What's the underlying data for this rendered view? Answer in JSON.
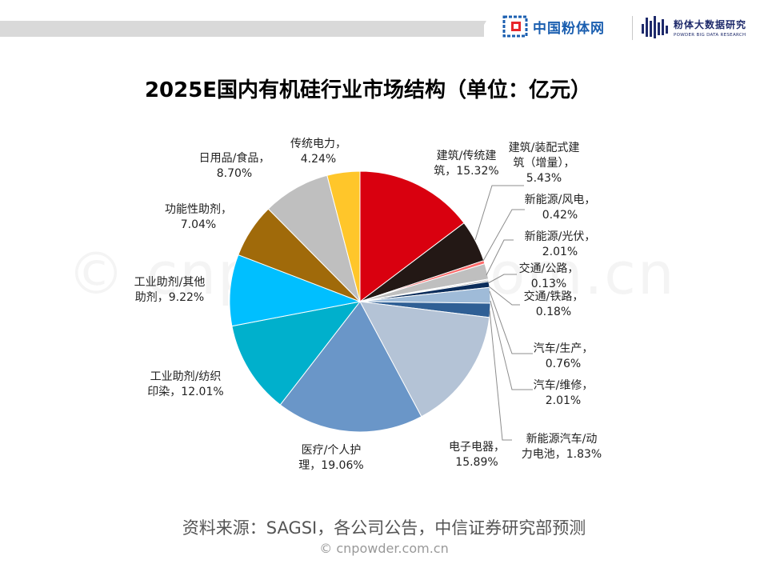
{
  "header": {
    "logo1_text": "中国粉体网",
    "logo2_cn": "粉体大数据研究",
    "logo2_en": "POWDER BIG DATA RESEARCH"
  },
  "watermark": "© cnpowder.com.cn",
  "source": "资料来源：SAGSI，各公司公告，中信证券研究部预测",
  "footer": "© cnpowder.com.cn",
  "colors": {
    "topbar": "#d9d9d9",
    "brand_blue": "#1b5fb0",
    "brand_red": "#e8262b",
    "leader_line": "#8c8c8c"
  },
  "chart_data": {
    "type": "pie",
    "title": "2025E国内有机硅行业市场结构（单位：亿元）",
    "unit": "%",
    "start_angle_deg": 90,
    "direction": "clockwise",
    "slices": [
      {
        "label_lines": [
          "建筑/传统建",
          "筑，15.32%"
        ],
        "value": 15.32,
        "color": "#d9000f"
      },
      {
        "label_lines": [
          "建筑/装配式建",
          "筑（增量），",
          "5.43%"
        ],
        "value": 5.43,
        "color": "#231815"
      },
      {
        "label_lines": [
          "新能源/风电，",
          "0.42%"
        ],
        "value": 0.42,
        "color": "#ff6b6b"
      },
      {
        "label_lines": [
          "新能源/光伏，",
          "2.01%"
        ],
        "value": 2.01,
        "color": "#bfbfbf"
      },
      {
        "label_lines": [
          "交通/公路，",
          "0.13%"
        ],
        "value": 0.13,
        "color": "#d0d0d0"
      },
      {
        "label_lines": [
          "交通/铁路，",
          "0.18%"
        ],
        "value": 0.18,
        "color": "#7f7f7f"
      },
      {
        "label_lines": [
          "汽车/生产，",
          "0.76%"
        ],
        "value": 0.76,
        "color": "#0b2d5b"
      },
      {
        "label_lines": [
          "汽车/维修，",
          "2.01%"
        ],
        "value": 2.01,
        "color": "#9fbbd8"
      },
      {
        "label_lines": [
          "新能源汽车/动",
          "力电池，1.83%"
        ],
        "value": 1.83,
        "color": "#2f5f95"
      },
      {
        "label_lines": [
          "电子电器，",
          "15.89%"
        ],
        "value": 15.89,
        "color": "#b4c3d6"
      },
      {
        "label_lines": [
          "医疗/个人护",
          "理，19.06%"
        ],
        "value": 19.06,
        "color": "#6a96c8"
      },
      {
        "label_lines": [
          "工业助剂/纺织",
          "印染，12.01%"
        ],
        "value": 12.01,
        "color": "#00b0cc"
      },
      {
        "label_lines": [
          "工业助剂/其他",
          "助剂，9.22%"
        ],
        "value": 9.22,
        "color": "#00bfff"
      },
      {
        "label_lines": [
          "功能性助剂，",
          "7.04%"
        ],
        "value": 7.04,
        "color": "#a06a0a"
      },
      {
        "label_lines": [
          "日用品/食品，",
          "8.70%"
        ],
        "value": 8.7,
        "color": "#bfbfbf"
      },
      {
        "label_lines": [
          "传统电力，",
          "4.24%"
        ],
        "value": 4.24,
        "color": "#ffc62a"
      }
    ]
  }
}
